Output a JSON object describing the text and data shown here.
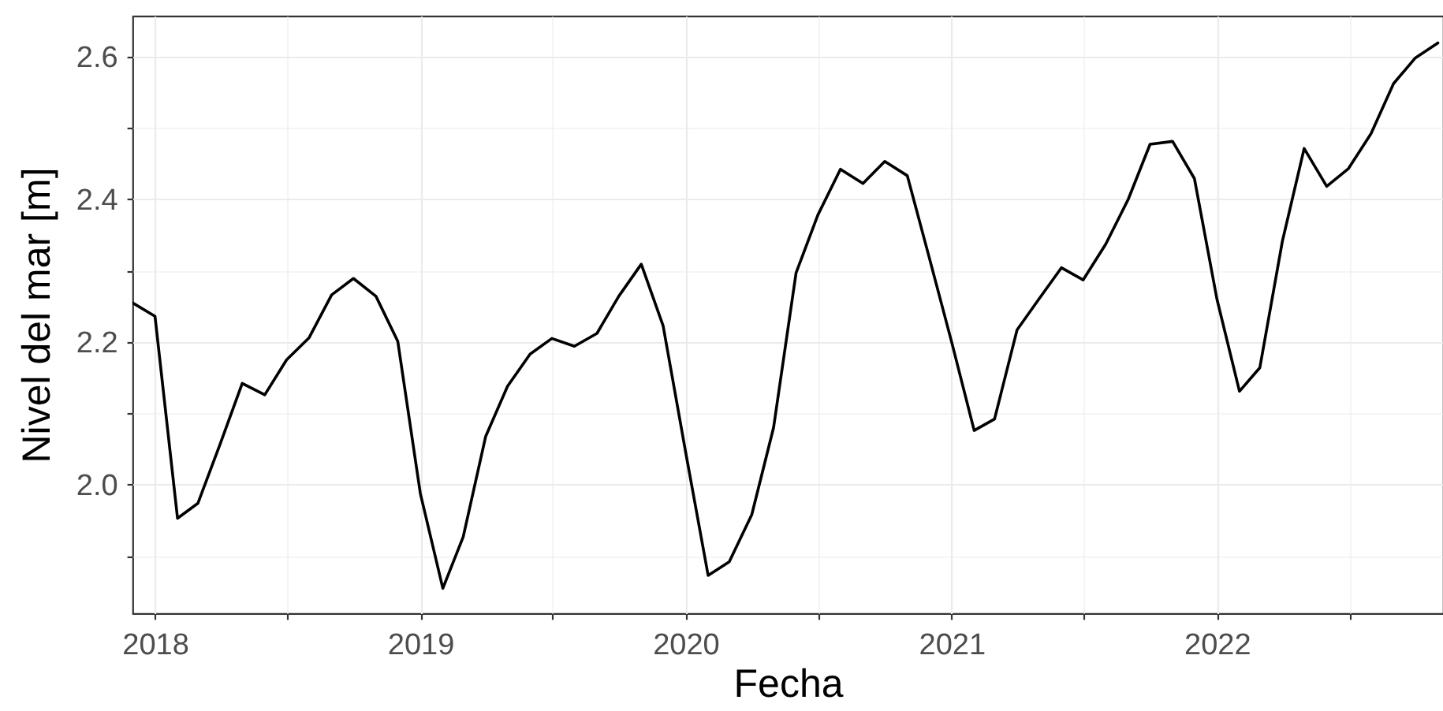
{
  "chart_data": {
    "type": "line",
    "xlabel": "Fecha",
    "ylabel": "Nivel del mar [m]",
    "color": "#000000",
    "x": [
      "2017-12",
      "2018-01",
      "2018-02",
      "2018-03",
      "2018-04",
      "2018-05",
      "2018-06",
      "2018-07",
      "2018-08",
      "2018-09",
      "2018-10",
      "2018-11",
      "2018-12",
      "2019-01",
      "2019-02",
      "2019-03",
      "2019-04",
      "2019-05",
      "2019-06",
      "2019-07",
      "2019-08",
      "2019-09",
      "2019-10",
      "2019-11",
      "2019-12",
      "2020-01",
      "2020-02",
      "2020-03",
      "2020-04",
      "2020-05",
      "2020-06",
      "2020-07",
      "2020-08",
      "2020-09",
      "2020-10",
      "2020-11",
      "2020-12",
      "2021-01",
      "2021-02",
      "2021-03",
      "2021-04",
      "2021-05",
      "2021-06",
      "2021-07",
      "2021-08",
      "2021-09",
      "2021-10",
      "2021-11",
      "2021-12",
      "2022-01",
      "2022-02",
      "2022-03",
      "2022-04",
      "2022-05",
      "2022-06",
      "2022-07",
      "2022-08",
      "2022-09",
      "2022-10",
      "2022-11"
    ],
    "values": [
      2.255,
      2.236,
      1.953,
      1.974,
      2.058,
      2.142,
      2.126,
      2.175,
      2.206,
      2.266,
      2.289,
      2.264,
      2.201,
      1.988,
      1.855,
      1.927,
      2.068,
      2.138,
      2.183,
      2.205,
      2.194,
      2.212,
      2.264,
      2.309,
      2.223,
      2.046,
      1.873,
      1.892,
      1.958,
      2.08,
      2.297,
      2.378,
      2.442,
      2.422,
      2.453,
      2.433,
      2.319,
      2.2,
      2.076,
      2.092,
      2.217,
      2.26,
      2.304,
      2.287,
      2.337,
      2.4,
      2.477,
      2.481,
      2.429,
      2.26,
      2.131,
      2.164,
      2.341,
      2.471,
      2.418,
      2.443,
      2.492,
      2.562,
      2.598,
      2.619
    ],
    "xlim": [
      "2017-12-01",
      "2022-11-08"
    ],
    "xticks": [
      "2018",
      {
        "value": "2018-07-02",
        "label": null
      },
      "2019",
      {
        "value": "2019-07-02",
        "label": null
      },
      "2020",
      {
        "value": "2020-07-02",
        "label": null
      },
      "2021",
      {
        "value": "2021-07-02",
        "label": null
      },
      "2022",
      {
        "value": "2022-07-02",
        "label": null
      }
    ],
    "ylim": [
      1.82,
      2.657
    ],
    "yticks": [
      {
        "value": 1.9,
        "label": null
      },
      {
        "value": 2,
        "label": "2.0"
      },
      {
        "value": 2.1,
        "label": null
      },
      2.2,
      {
        "value": 2.3,
        "label": null
      },
      2.4,
      {
        "value": 2.5,
        "label": null
      },
      2.6
    ],
    "grid": true
  }
}
